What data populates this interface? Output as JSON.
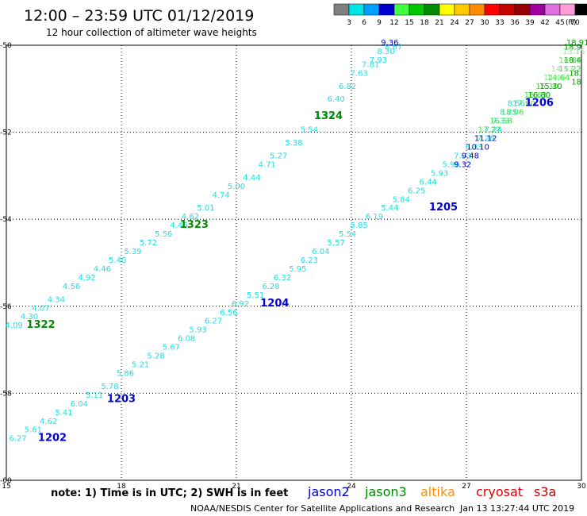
{
  "header": {
    "title": "12:00 – 23:59 UTC 01/12/2019",
    "subtitle": "12 hour collection of altimeter wave heights"
  },
  "colorbar": {
    "unit": "(ft)",
    "bins": [
      {
        "color": "#808080",
        "label": "3"
      },
      {
        "color": "#00e5e5",
        "label": "6"
      },
      {
        "color": "#00a0ff",
        "label": "9"
      },
      {
        "color": "#0000d0",
        "label": "12"
      },
      {
        "color": "#40ff40",
        "label": "15"
      },
      {
        "color": "#00c800",
        "label": "18"
      },
      {
        "color": "#008c00",
        "label": "21"
      },
      {
        "color": "#ffff00",
        "label": "24"
      },
      {
        "color": "#ffc800",
        "label": "27"
      },
      {
        "color": "#ff8c00",
        "label": "30"
      },
      {
        "color": "#ff0000",
        "label": "33"
      },
      {
        "color": "#c80000",
        "label": "36"
      },
      {
        "color": "#960000",
        "label": "39"
      },
      {
        "color": "#a000a0",
        "label": "42"
      },
      {
        "color": "#e070e0",
        "label": "45"
      },
      {
        "color": "#ff9ed8",
        "label": "70"
      },
      {
        "color": "#000000",
        "label": ""
      }
    ]
  },
  "notes": {
    "note": "note:  1) Time is in UTC;  2) SWH is in feet",
    "satellites": [
      {
        "name": "jason2",
        "color": "#0000d0"
      },
      {
        "name": "jason3",
        "color": "#008c00"
      },
      {
        "name": "altika",
        "color": "#ff8c00"
      },
      {
        "name": "cryosat",
        "color": "#e00000"
      },
      {
        "name": "s3a",
        "color": "#c80000"
      }
    ],
    "footer_left": "NOAA/NESDIS Center for Satellite Applications and Research",
    "footer_right": "Jan 13 13:27:44 UTC 2019"
  },
  "chart_data": {
    "type": "scatter",
    "xlim": [
      15,
      30
    ],
    "ylim": [
      -60,
      -50
    ],
    "xticks": [
      "15",
      "18",
      "21",
      "24",
      "27",
      "30"
    ],
    "yticks": [
      "-50",
      "-52",
      "-54",
      "-56",
      "-58",
      "-60"
    ],
    "grid": true,
    "passes": [
      {
        "label": "1322",
        "color": "#008c00",
        "x": 15.9,
        "y": -56.5
      },
      {
        "label": "1323",
        "color": "#008c00",
        "x": 19.9,
        "y": -54.2
      },
      {
        "label": "1324",
        "color": "#008c00",
        "x": 23.4,
        "y": -51.7
      },
      {
        "label": "1202",
        "color": "#0000d0",
        "x": 16.2,
        "y": -59.1
      },
      {
        "label": "1203",
        "color": "#0000d0",
        "x": 18.0,
        "y": -58.2
      },
      {
        "label": "1204",
        "color": "#0000d0",
        "x": 22.0,
        "y": -56.0
      },
      {
        "label": "1205",
        "color": "#0000d0",
        "x": 26.4,
        "y": -53.8
      },
      {
        "label": "1206",
        "color": "#0000d0",
        "x": 28.9,
        "y": -51.4
      }
    ],
    "series": [
      {
        "name": "",
        "color": "#20e0e0",
        "points": [
          {
            "x": 15.2,
            "y": -56.5,
            "v": "4.09"
          },
          {
            "x": 15.6,
            "y": -56.3,
            "v": "4.30"
          },
          {
            "x": 15.9,
            "y": -56.1,
            "v": "4.07"
          },
          {
            "x": 16.3,
            "y": -55.9,
            "v": "4.34"
          },
          {
            "x": 16.7,
            "y": -55.6,
            "v": "4.56"
          },
          {
            "x": 17.1,
            "y": -55.4,
            "v": "4.92"
          },
          {
            "x": 17.5,
            "y": -55.2,
            "v": "4.46"
          },
          {
            "x": 17.9,
            "y": -55.0,
            "v": "5.40"
          },
          {
            "x": 18.3,
            "y": -54.8,
            "v": "5.39"
          },
          {
            "x": 18.7,
            "y": -54.6,
            "v": "5.72"
          },
          {
            "x": 19.1,
            "y": -54.4,
            "v": "5.56"
          },
          {
            "x": 19.5,
            "y": -54.2,
            "v": "4.46"
          },
          {
            "x": 19.8,
            "y": -54.0,
            "v": "4.62"
          },
          {
            "x": 20.2,
            "y": -53.8,
            "v": "5.01"
          },
          {
            "x": 20.6,
            "y": -53.5,
            "v": "4.74"
          },
          {
            "x": 21.0,
            "y": -53.3,
            "v": "5.00"
          },
          {
            "x": 21.4,
            "y": -53.1,
            "v": "4.44"
          },
          {
            "x": 21.8,
            "y": -52.8,
            "v": "4.71"
          },
          {
            "x": 22.1,
            "y": -52.6,
            "v": "5.27"
          },
          {
            "x": 22.5,
            "y": -52.3,
            "v": "5.38"
          },
          {
            "x": 22.9,
            "y": -52.0,
            "v": "5.54"
          },
          {
            "x": 23.3,
            "y": -51.7,
            "v": "5.73"
          },
          {
            "x": 23.6,
            "y": -51.3,
            "v": "6.40"
          },
          {
            "x": 23.9,
            "y": -51.0,
            "v": "6.82"
          },
          {
            "x": 24.2,
            "y": -50.7,
            "v": "7.63"
          },
          {
            "x": 24.5,
            "y": -50.5,
            "v": "7.81"
          },
          {
            "x": 24.7,
            "y": -50.4,
            "v": "7.93"
          },
          {
            "x": 24.9,
            "y": -50.2,
            "v": "8.30"
          },
          {
            "x": 25.1,
            "y": -50.1,
            "v": "8.67"
          }
        ]
      },
      {
        "name": "",
        "color": "#20e0e0",
        "points": [
          {
            "x": 15.3,
            "y": -59.1,
            "v": "6.27"
          },
          {
            "x": 15.7,
            "y": -58.9,
            "v": "5.61"
          },
          {
            "x": 16.1,
            "y": -58.7,
            "v": "4.62"
          },
          {
            "x": 16.5,
            "y": -58.5,
            "v": "5.41"
          },
          {
            "x": 16.9,
            "y": -58.3,
            "v": "6.04"
          },
          {
            "x": 17.3,
            "y": -58.1,
            "v": "5.11"
          },
          {
            "x": 17.7,
            "y": -57.9,
            "v": "5.78"
          },
          {
            "x": 18.1,
            "y": -57.6,
            "v": "5.86"
          },
          {
            "x": 18.5,
            "y": -57.4,
            "v": "5.21"
          },
          {
            "x": 18.9,
            "y": -57.2,
            "v": "5.28"
          },
          {
            "x": 19.3,
            "y": -57.0,
            "v": "5.67"
          },
          {
            "x": 19.7,
            "y": -56.8,
            "v": "6.08"
          },
          {
            "x": 20.0,
            "y": -56.6,
            "v": "5.93"
          },
          {
            "x": 20.4,
            "y": -56.4,
            "v": "6.27"
          },
          {
            "x": 20.8,
            "y": -56.2,
            "v": "6.56"
          },
          {
            "x": 21.1,
            "y": -56.0,
            "v": "6.92"
          },
          {
            "x": 21.5,
            "y": -55.8,
            "v": "5.51"
          },
          {
            "x": 21.9,
            "y": -55.6,
            "v": "6.28"
          },
          {
            "x": 22.2,
            "y": -55.4,
            "v": "6.32"
          },
          {
            "x": 22.6,
            "y": -55.2,
            "v": "5.95"
          },
          {
            "x": 22.9,
            "y": -55.0,
            "v": "6.23"
          }
        ]
      },
      {
        "name": "",
        "color": "#0000d0",
        "points": [
          {
            "x": 25.0,
            "y": -50.0,
            "v": "9.36"
          }
        ]
      },
      {
        "name": "",
        "color": "#20e0e0",
        "points": [
          {
            "x": 23.2,
            "y": -54.8,
            "v": "6.04"
          },
          {
            "x": 23.6,
            "y": -54.6,
            "v": "5.57"
          },
          {
            "x": 23.9,
            "y": -54.4,
            "v": "5.54"
          },
          {
            "x": 24.2,
            "y": -54.2,
            "v": "5.85"
          },
          {
            "x": 24.6,
            "y": -54.0,
            "v": "6.19"
          },
          {
            "x": 25.0,
            "y": -53.8,
            "v": "5.44"
          },
          {
            "x": 25.3,
            "y": -53.6,
            "v": "5.84"
          },
          {
            "x": 25.7,
            "y": -53.4,
            "v": "6.25"
          },
          {
            "x": 26.0,
            "y": -53.2,
            "v": "6.44"
          },
          {
            "x": 26.3,
            "y": -53.0,
            "v": "5.93"
          },
          {
            "x": 26.6,
            "y": -52.8,
            "v": "5.96"
          },
          {
            "x": 26.9,
            "y": -52.6,
            "v": "7.03"
          },
          {
            "x": 27.2,
            "y": -52.4,
            "v": "6.33"
          },
          {
            "x": 27.5,
            "y": -52.2,
            "v": "7.26"
          },
          {
            "x": 27.7,
            "y": -52.0,
            "v": "7.24"
          },
          {
            "x": 27.9,
            "y": -51.8,
            "v": "7.33"
          },
          {
            "x": 28.1,
            "y": -51.6,
            "v": "8.25"
          },
          {
            "x": 28.3,
            "y": -51.4,
            "v": "8.56"
          }
        ]
      },
      {
        "name": "",
        "color": "#0000d0",
        "points": [
          {
            "x": 26.9,
            "y": -52.8,
            "v": "9.32"
          },
          {
            "x": 27.1,
            "y": -52.6,
            "v": "9.48"
          },
          {
            "x": 27.3,
            "y": -52.4,
            "v": "10.10"
          },
          {
            "x": 27.5,
            "y": -52.2,
            "v": "11.12"
          }
        ]
      },
      {
        "name": "",
        "color": "#40e040",
        "points": [
          {
            "x": 27.6,
            "y": -52.0,
            "v": "17.22"
          },
          {
            "x": 27.9,
            "y": -51.8,
            "v": "16.58"
          },
          {
            "x": 28.2,
            "y": -51.6,
            "v": "18.06"
          },
          {
            "x": 28.5,
            "y": -51.4,
            "v": "17.90"
          },
          {
            "x": 28.8,
            "y": -51.2,
            "v": "16.63"
          },
          {
            "x": 29.1,
            "y": -51.0,
            "v": "15.30"
          },
          {
            "x": 29.4,
            "y": -50.8,
            "v": "14.64"
          },
          {
            "x": 29.7,
            "y": -50.6,
            "v": "15.22"
          },
          {
            "x": 30.0,
            "y": -50.4,
            "v": "14.86"
          }
        ]
      },
      {
        "name": "",
        "color": "#00a000",
        "points": [
          {
            "x": 28.9,
            "y": -51.2,
            "v": "16.80"
          },
          {
            "x": 29.2,
            "y": -51.0,
            "v": "15.30"
          },
          {
            "x": 29.9,
            "y": -50.0,
            "v": "18.91"
          },
          {
            "x": 30.0,
            "y": -50.1,
            "v": "18.9"
          },
          {
            "x": 30.0,
            "y": -50.4,
            "v": "18.4"
          },
          {
            "x": 30.0,
            "y": -50.7,
            "v": "18."
          },
          {
            "x": 30.0,
            "y": -50.9,
            "v": "18"
          }
        ]
      },
      {
        "name": "",
        "color": "#90e890",
        "points": [
          {
            "x": 29.3,
            "y": -50.8,
            "v": "14.46"
          },
          {
            "x": 29.5,
            "y": -50.6,
            "v": "14.13"
          },
          {
            "x": 29.7,
            "y": -50.4,
            "v": "14.13"
          },
          {
            "x": 29.8,
            "y": -50.2,
            "v": "13.15"
          }
        ]
      }
    ]
  }
}
